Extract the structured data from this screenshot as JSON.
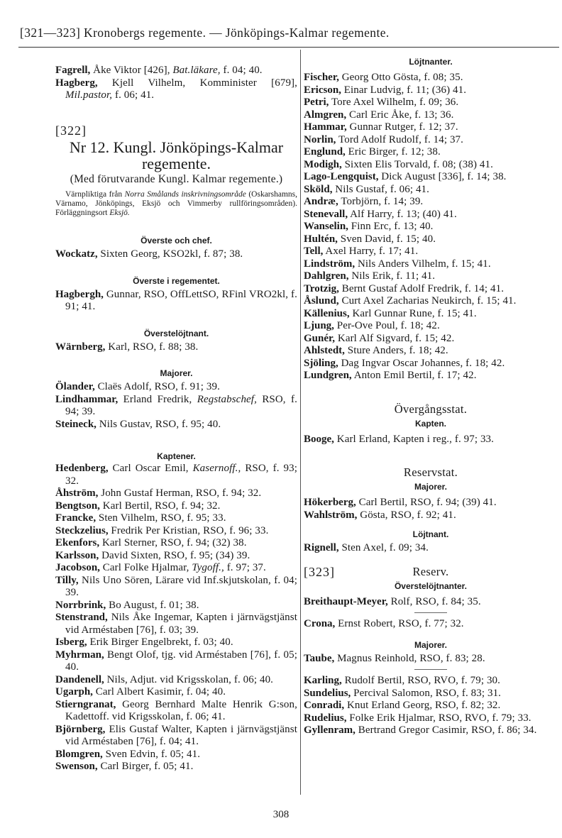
{
  "header": {
    "title": "[321—323]  Kronobergs regemente. — Jönköpings-Kalmar regemente."
  },
  "left": {
    "intro_entries": [
      {
        "name": "Fagrell,",
        "rest": [
          " Åke Viktor [426], ",
          "Bat.läkare,",
          " f. 04; 40."
        ]
      },
      {
        "name": "Hagberg,",
        "rest": [
          " Kjell Vilhelm, Komminister [679], ",
          "Mil.pastor,",
          " f. 06; 41."
        ]
      }
    ],
    "section_number": "[322]",
    "title_line1": "Nr 12.  Kungl. Jönköpings-Kalmar",
    "title_line2": "regemente.",
    "subtitle": "(Med förutvarande Kungl. Kalmar regemente.)",
    "note": [
      "Värnpliktiga från ",
      "Norra Smålands inskrivningsområde",
      " (Oskarshamns, Värnamo, Jönköpings, Eksjö och Vimmerby rullföringsområden). Förläggningsort ",
      "Eksjö."
    ],
    "groups": [
      {
        "heading": "Överste och chef.",
        "entries": [
          {
            "name": "Wockatz,",
            "rest": [
              " Sixten Georg, KSO2kl, f. 87; 38."
            ]
          }
        ]
      },
      {
        "heading": "Överste i regementet.",
        "entries": [
          {
            "name": "Hagbergh,",
            "rest": [
              " Gunnar, RSO, OffLettSO, RFinl VRO2kl, f. 91; 41."
            ]
          }
        ]
      },
      {
        "heading": "Överstelöjtnant.",
        "entries": [
          {
            "name": "Wärnberg,",
            "rest": [
              " Karl, RSO, f. 88; 38."
            ]
          }
        ]
      },
      {
        "heading": "Majorer.",
        "entries": [
          {
            "name": "Ölander,",
            "rest": [
              " Claës Adolf, RSO, f. 91; 39."
            ]
          },
          {
            "name": "Lindhammar,",
            "rest": [
              " Erland Fredrik, ",
              "Regstabschef,",
              " RSO, f. 94; 39."
            ]
          },
          {
            "name": "Steineck,",
            "rest": [
              " Nils Gustav, RSO, f. 95; 40."
            ]
          }
        ]
      },
      {
        "heading": "Kaptener.",
        "entries": [
          {
            "name": "Hedenberg,",
            "rest": [
              " Carl Oscar Emil, ",
              "Kasernoff.,",
              " RSO, f. 93; 32."
            ]
          },
          {
            "name": "Åhström,",
            "rest": [
              " John Gustaf Herman, RSO, f. 94; 32."
            ]
          },
          {
            "name": "Bengtson,",
            "rest": [
              " Karl Bertil, RSO, f. 94; 32."
            ]
          },
          {
            "name": "Francke,",
            "rest": [
              " Sten Vilhelm, RSO, f. 95; 33."
            ]
          },
          {
            "name": "Steckzelius,",
            "rest": [
              " Fredrik Per Kristian, RSO, f. 96; 33."
            ]
          },
          {
            "name": "Ekenfors,",
            "rest": [
              " Karl Sterner, RSO, f. 94; (32) 38."
            ]
          },
          {
            "name": "Karlsson,",
            "rest": [
              " David Sixten, RSO, f. 95; (34) 39."
            ]
          },
          {
            "name": "Jacobson,",
            "rest": [
              " Carl Folke Hjalmar, ",
              "Tygoff.,",
              " f. 97; 37."
            ]
          },
          {
            "name": "Tilly,",
            "rest": [
              " Nils Uno Sören, Lärare vid Inf.skjutskolan, f. 04; 39."
            ]
          },
          {
            "name": "Norrbrink,",
            "rest": [
              " Bo August, f. 01; 38."
            ]
          },
          {
            "name": "Stenstrand,",
            "rest": [
              " Nils Åke Ingemar, Kapten i järnvägstjänst vid Arméstaben [76], f. 03; 39."
            ]
          },
          {
            "name": "Isberg,",
            "rest": [
              " Erik Birger Engelbrekt, f. 03; 40."
            ]
          },
          {
            "name": "Myhrman,",
            "rest": [
              " Bengt Olof, tjg. vid Arméstaben [76], f. 05; 40."
            ]
          },
          {
            "name": "Dandenell,",
            "rest": [
              " Nils, Adjut. vid Krigsskolan, f. 06; 40."
            ]
          },
          {
            "name": "Ugarph,",
            "rest": [
              " Carl Albert Kasimir, f. 04; 40."
            ]
          },
          {
            "name": "Stierngranat,",
            "rest": [
              " Georg Bernhard Malte Henrik G:son, Kadettoff. vid Krigsskolan, f. 06; 41."
            ]
          },
          {
            "name": "Björnberg,",
            "rest": [
              " Elis Gustaf Walter, Kapten i järnvägstjänst vid Arméstaben [76], f. 04; 41."
            ]
          },
          {
            "name": "Blomgren,",
            "rest": [
              " Sven Edvin, f. 05; 41."
            ]
          },
          {
            "name": "Swenson,",
            "rest": [
              " Carl Birger, f. 05; 41."
            ]
          }
        ]
      }
    ]
  },
  "right": {
    "lojtnanter": {
      "heading": "Löjtnanter.",
      "entries": [
        {
          "name": "Fischer,",
          "rest": [
            " Georg Otto Gösta, f. 08; 35."
          ]
        },
        {
          "name": "Ericson,",
          "rest": [
            " Einar Ludvig, f. 11; (36) 41."
          ]
        },
        {
          "name": "Petri,",
          "rest": [
            " Tore Axel Wilhelm, f. 09; 36."
          ]
        },
        {
          "name": "Almgren,",
          "rest": [
            " Carl Eric Åke, f. 13; 36."
          ]
        },
        {
          "name": "Hammar,",
          "rest": [
            " Gunnar Rutger, f. 12; 37."
          ]
        },
        {
          "name": "Norlin,",
          "rest": [
            " Tord Adolf Rudolf, f. 14; 37."
          ]
        },
        {
          "name": "Englund,",
          "rest": [
            " Eric Birger, f. 12; 38."
          ]
        },
        {
          "name": "Modigh,",
          "rest": [
            " Sixten Elis Torvald, f. 08; (38) 41."
          ]
        },
        {
          "name": "Lago-Lengquist,",
          "rest": [
            " Dick August [336], f. 14; 38."
          ]
        },
        {
          "name": "Sköld,",
          "rest": [
            " Nils Gustaf, f. 06; 41."
          ]
        },
        {
          "name": "Andræ,",
          "rest": [
            " Torbjörn, f. 14; 39."
          ]
        },
        {
          "name": "Stenevall,",
          "rest": [
            " Alf Harry, f. 13; (40) 41."
          ]
        },
        {
          "name": "Wanselin,",
          "rest": [
            " Finn Erc, f. 13; 40."
          ]
        },
        {
          "name": "Hultén,",
          "rest": [
            " Sven David, f. 15; 40."
          ]
        },
        {
          "name": "Tell,",
          "rest": [
            " Axel Harry, f. 17; 41."
          ]
        },
        {
          "name": "Lindström,",
          "rest": [
            " Nils Anders Vilhelm, f. 15; 41."
          ]
        },
        {
          "name": "Dahlgren,",
          "rest": [
            " Nils Erik, f. 11; 41."
          ]
        },
        {
          "name": "Trotzig,",
          "rest": [
            " Bernt Gustaf Adolf Fredrik, f. 14; 41."
          ]
        },
        {
          "name": "Åslund,",
          "rest": [
            " Curt Axel Zacharias Neukirch, f. 15; 41."
          ]
        },
        {
          "name": "Källenius,",
          "rest": [
            " Karl Gunnar Rune, f. 15; 41."
          ]
        },
        {
          "name": "Ljung,",
          "rest": [
            " Per-Ove Poul, f. 18; 42."
          ]
        },
        {
          "name": "Gunér,",
          "rest": [
            " Karl Alf Sigvard, f. 15; 42."
          ]
        },
        {
          "name": "Ahlstedt,",
          "rest": [
            " Sture Anders, f. 18; 42."
          ]
        },
        {
          "name": "Sjöling,",
          "rest": [
            " Dag Ingvar Oscar Johannes, f. 18; 42."
          ]
        },
        {
          "name": "Lundgren,",
          "rest": [
            " Anton Emil Bertil, f. 17; 42."
          ]
        }
      ]
    },
    "overgangsstat": {
      "title": "Övergångsstat.",
      "heading": "Kapten.",
      "entries": [
        {
          "name": "Booge,",
          "rest": [
            " Karl Erland, Kapten i reg., f. 97; 33."
          ]
        }
      ]
    },
    "reservstat": {
      "title": "Reservstat.",
      "majorer": {
        "heading": "Majorer.",
        "entries": [
          {
            "name": "Hökerberg,",
            "rest": [
              " Carl Bertil, RSO, f. 94; (39) 41."
            ]
          },
          {
            "name": "Wahlström,",
            "rest": [
              " Gösta, RSO, f. 92; 41."
            ]
          }
        ]
      },
      "lojtnant": {
        "heading": "Löjtnant.",
        "entries": [
          {
            "name": "Rignell,",
            "rest": [
              " Sten Axel, f. 09; 34."
            ]
          }
        ]
      }
    },
    "reserv": {
      "section_number": "[323]",
      "title": "Reserv.",
      "overstelojtnanter": {
        "heading": "Överstelöjtnanter.",
        "entries": [
          {
            "name": "Breithaupt-Meyer,",
            "rest": [
              " Rolf, RSO, f. 84; 35."
            ]
          }
        ]
      },
      "after_rule1": {
        "entries": [
          {
            "name": "Crona,",
            "rest": [
              " Ernst Robert, RSO, f. 77; 32."
            ]
          }
        ]
      },
      "majorer": {
        "heading": "Majorer.",
        "entries": [
          {
            "name": "Taube,",
            "rest": [
              " Magnus Reinhold, RSO, f. 83; 28."
            ]
          }
        ]
      },
      "after_rule2": {
        "entries": [
          {
            "name": "Karling,",
            "rest": [
              " Rudolf Bertil, RSO, RVO, f. 79; 30."
            ]
          },
          {
            "name": "Sundelius,",
            "rest": [
              " Percival Salomon, RSO, f. 83; 31."
            ]
          },
          {
            "name": "Conradi,",
            "rest": [
              " Knut Erland Georg, RSO, f. 82; 32."
            ]
          },
          {
            "name": "Rudelius,",
            "rest": [
              " Folke Erik Hjalmar, RSO, RVO, f. 79; 33."
            ]
          },
          {
            "name": "Gyllenram,",
            "rest": [
              " Bertrand Gregor Casimir, RSO, f. 86; 34."
            ]
          }
        ]
      }
    }
  },
  "footer": {
    "page_number": "308"
  }
}
